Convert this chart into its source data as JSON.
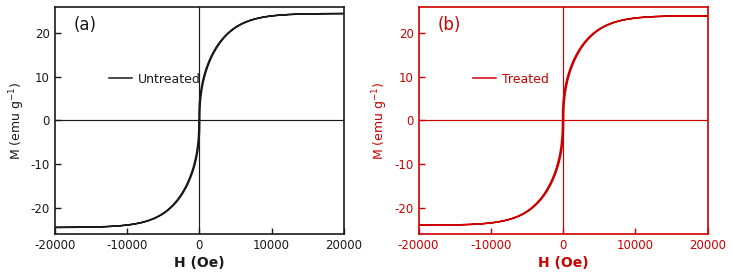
{
  "panel_a": {
    "label": "(a)",
    "legend": "Untreated",
    "color": "#1a1a1a",
    "Ms": 24.5,
    "Hc": 60,
    "steepness": 0.00018,
    "power": 0.42
  },
  "panel_b": {
    "label": "(b)",
    "legend": "Treated",
    "color": "#cc0000",
    "Ms": 24.0,
    "Hc": 80,
    "steepness": 0.00018,
    "power": 0.42
  },
  "xlim": [
    -20000,
    20000
  ],
  "ylim": [
    -26,
    26
  ],
  "xticks": [
    -20000,
    -10000,
    0,
    10000,
    20000
  ],
  "yticks": [
    -20,
    -10,
    0,
    10,
    20
  ],
  "xlabel": "H (Oe)",
  "ylabel": "M (emu g⁻¹)",
  "figsize": [
    7.33,
    2.77
  ],
  "dpi": 100,
  "background": "#ffffff"
}
